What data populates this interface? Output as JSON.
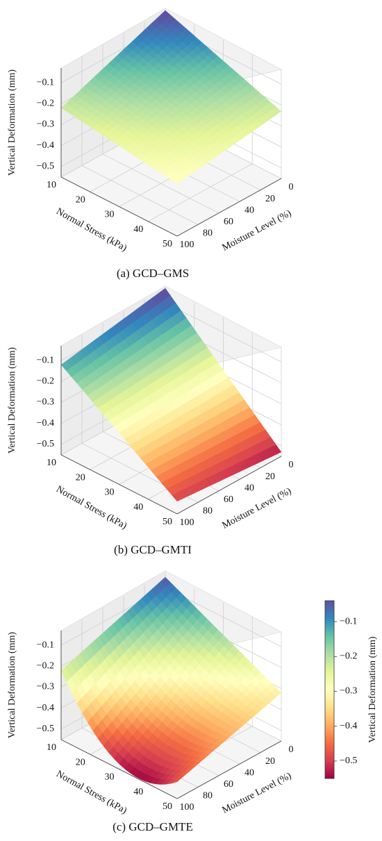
{
  "colors": {
    "colormap": "Spectral",
    "stops": [
      "#9e0142",
      "#d53e4f",
      "#f46d43",
      "#fdae61",
      "#fee08b",
      "#ffffbf",
      "#e6f598",
      "#abdda4",
      "#66c2a5",
      "#3288bd",
      "#5e4fa2"
    ]
  },
  "chart_data": [
    {
      "type": "surface3d",
      "caption": "(a) GCD–GMS",
      "xlabel": "Normal Stress (kPa)",
      "ylabel": "Moisture Level (%)",
      "zlabel": "Vertical Deformation (mm)",
      "x_ticks": [
        "10",
        "20",
        "30",
        "40",
        "50"
      ],
      "y_ticks": [
        "0",
        "20",
        "40",
        "60",
        "80",
        "100"
      ],
      "z_ticks": [
        "−0.1",
        "−0.2",
        "−0.3",
        "−0.4",
        "−0.5"
      ],
      "x": [
        10,
        50
      ],
      "y": [
        0,
        100
      ],
      "z": [
        [
          -0.03,
          -0.22
        ],
        [
          -0.23,
          -0.3
        ]
      ],
      "zlim": [
        -0.55,
        -0.03
      ],
      "grid": true
    },
    {
      "type": "surface3d",
      "caption": "(b) GCD–GMTI",
      "xlabel": "Normal Stress (kPa)",
      "ylabel": "Moisture Level (%)",
      "zlabel": "Vertical Deformation (mm)",
      "x_ticks": [
        "10",
        "20",
        "30",
        "40",
        "50"
      ],
      "y_ticks": [
        "0",
        "20",
        "40",
        "60",
        "80",
        "100"
      ],
      "z_ticks": [
        "−0.1",
        "−0.2",
        "−0.3",
        "−0.4",
        "−0.5"
      ],
      "x": [
        10,
        50
      ],
      "y": [
        0,
        100
      ],
      "z": [
        [
          -0.03,
          -0.12
        ],
        [
          -0.53,
          -0.49
        ]
      ],
      "zlim": [
        -0.55,
        -0.03
      ],
      "grid": true
    },
    {
      "type": "surface3d",
      "caption": "(c) GCD–GMTE",
      "xlabel": "Normal Stress (kPa)",
      "ylabel": "Moisture Level (%)",
      "zlabel": "Vertical Deformation (mm)",
      "x_ticks": [
        "10",
        "20",
        "30",
        "40",
        "50"
      ],
      "y_ticks": [
        "0",
        "20",
        "40",
        "60",
        "80",
        "100"
      ],
      "z_ticks": [
        "−0.1",
        "−0.2",
        "−0.3",
        "−0.4",
        "−0.5"
      ],
      "x": [
        10,
        50
      ],
      "y": [
        0,
        100
      ],
      "z": [
        [
          -0.05,
          -0.22
        ],
        [
          -0.32,
          -0.47
        ]
      ],
      "curvature": -0.18,
      "zlim": [
        -0.55,
        -0.03
      ],
      "grid": true
    }
  ],
  "colorbar": {
    "label": "Vertical Deformation (mm)",
    "ticks": [
      "−0.1",
      "−0.2",
      "−0.3",
      "−0.4",
      "−0.5"
    ],
    "tick_values": [
      -0.1,
      -0.2,
      -0.3,
      -0.4,
      -0.5
    ],
    "range": [
      -0.55,
      -0.04
    ]
  }
}
